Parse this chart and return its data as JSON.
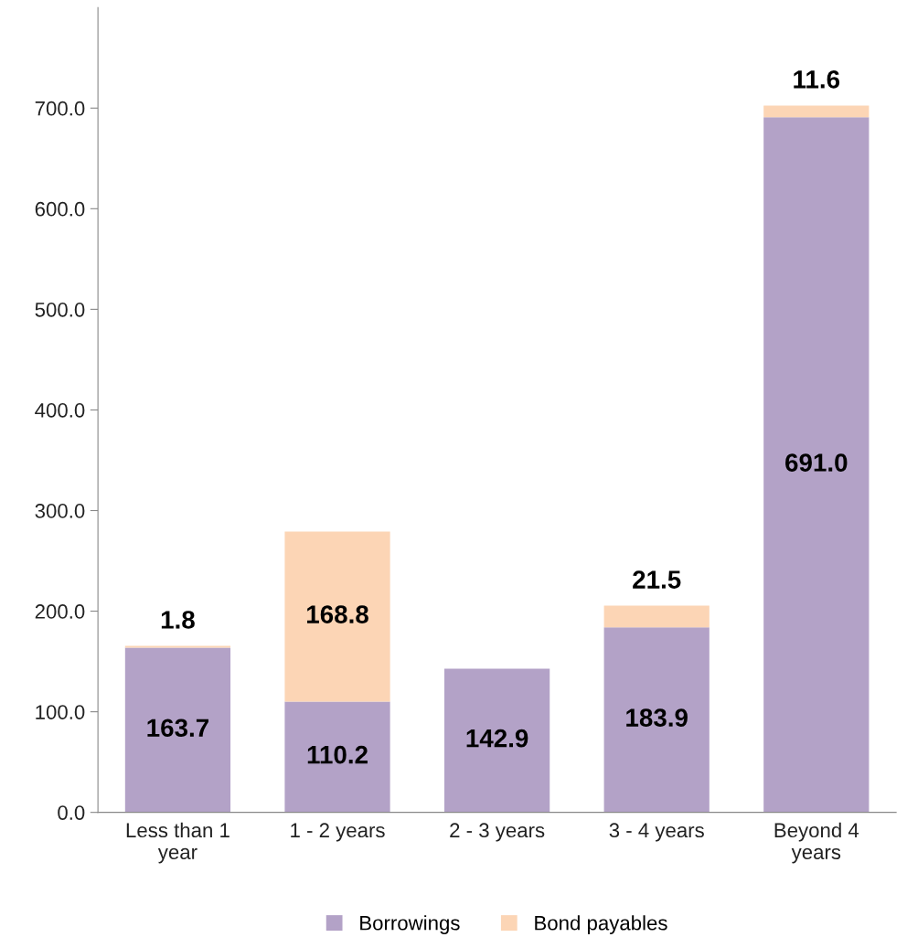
{
  "chart_data": {
    "type": "bar",
    "stacked": true,
    "categories": [
      "Less than 1 year",
      "1 - 2 years",
      "2 - 3 years",
      "3 - 4 years",
      "Beyond 4 years"
    ],
    "series": [
      {
        "name": "Borrowings",
        "color": "#b3a2c7",
        "values": [
          163.7,
          110.2,
          142.9,
          183.9,
          691.0
        ],
        "value_labels": [
          "163.7",
          "110.2",
          "142.9",
          "183.9",
          "691.0"
        ]
      },
      {
        "name": "Bond payables",
        "color": "#fcd5b5",
        "values": [
          1.8,
          168.8,
          null,
          21.5,
          11.6
        ],
        "value_labels": [
          "1.8",
          "168.8",
          null,
          "21.5",
          "11.6"
        ]
      }
    ],
    "ylim": [
      0,
      800
    ],
    "yticks": [
      {
        "value": 0,
        "label": "0.0"
      },
      {
        "value": 100,
        "label": "100.0"
      },
      {
        "value": 200,
        "label": "200.0"
      },
      {
        "value": 300,
        "label": "300.0"
      },
      {
        "value": 400,
        "label": "400.0"
      },
      {
        "value": 500,
        "label": "500.0"
      },
      {
        "value": 600,
        "label": "600.0"
      },
      {
        "value": 700,
        "label": "700.0"
      }
    ],
    "grid": false,
    "legend": "bottom"
  }
}
